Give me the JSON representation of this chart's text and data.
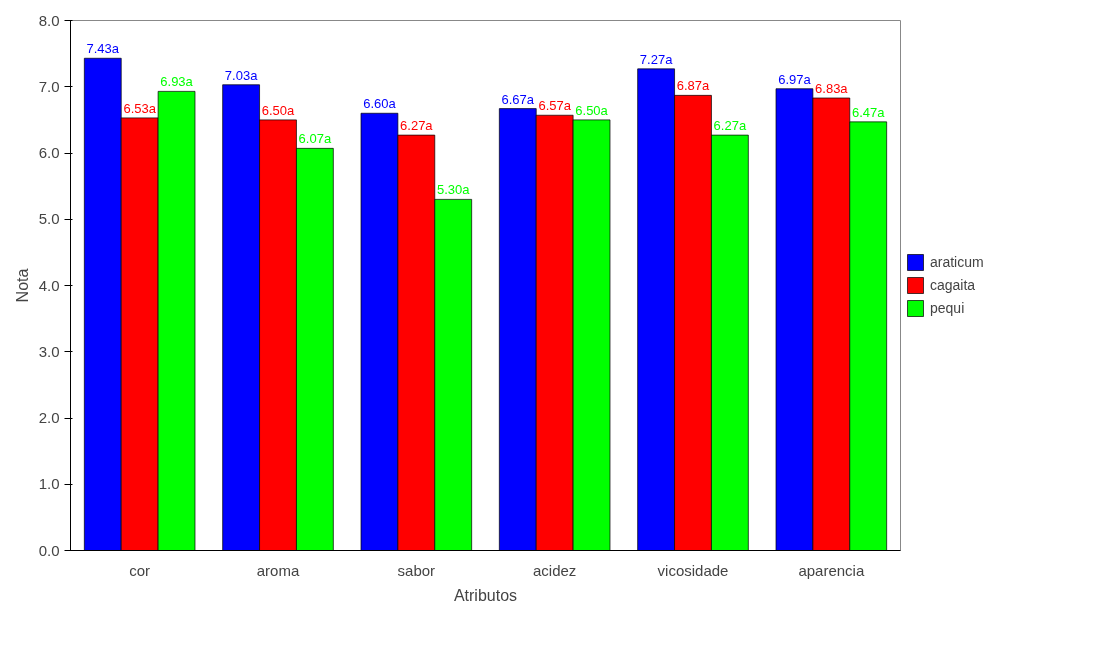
{
  "chart_data": {
    "type": "bar",
    "xlabel": "Atributos",
    "ylabel": "Nota",
    "categories": [
      "cor",
      "aroma",
      "sabor",
      "acidez",
      "vicosidade",
      "aparencia"
    ],
    "series": [
      {
        "name": "araticum",
        "color": "#0000ff",
        "values": [
          7.43,
          7.03,
          6.6,
          6.67,
          7.27,
          6.97
        ],
        "value_labels": [
          "7.43a",
          "7.03a",
          "6.60a",
          "6.67a",
          "7.27a",
          "6.97a"
        ]
      },
      {
        "name": "cagaita",
        "color": "#ff0000",
        "values": [
          6.53,
          6.5,
          6.27,
          6.57,
          6.87,
          6.83
        ],
        "value_labels": [
          "6.53a",
          "6.50a",
          "6.27a",
          "6.57a",
          "6.87a",
          "6.83a"
        ]
      },
      {
        "name": "pequi",
        "color": "#00ff00",
        "values": [
          6.93,
          6.07,
          5.3,
          6.5,
          6.27,
          6.47
        ],
        "value_labels": [
          "6.93a",
          "6.07a",
          "5.30a",
          "6.50a",
          "6.27a",
          "6.47a"
        ]
      }
    ],
    "ylim": [
      0,
      8
    ],
    "yticks": [
      {
        "value": 0,
        "label": "0.0"
      },
      {
        "value": 1,
        "label": "1.0"
      },
      {
        "value": 2,
        "label": "2.0"
      },
      {
        "value": 3,
        "label": "3.0"
      },
      {
        "value": 4,
        "label": "4.0"
      },
      {
        "value": 5,
        "label": "5.0"
      },
      {
        "value": 6,
        "label": "6.0"
      },
      {
        "value": 7,
        "label": "7.0"
      },
      {
        "value": 8,
        "label": "8.0"
      }
    ],
    "grid": false,
    "legend": "right"
  }
}
